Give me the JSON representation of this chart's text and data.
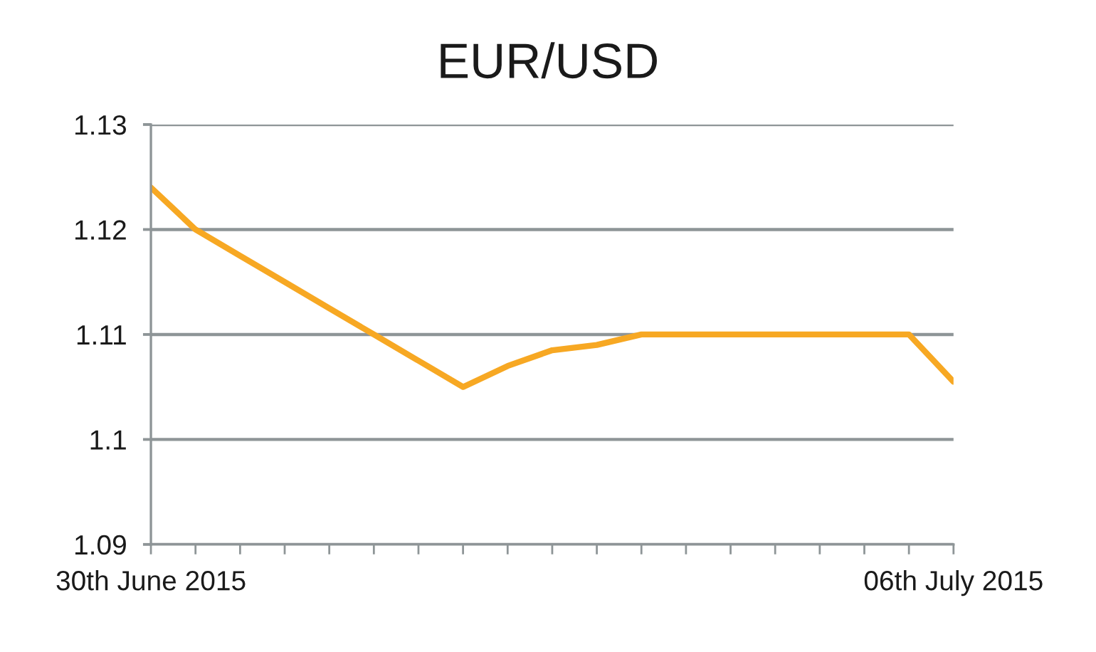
{
  "chart_data": {
    "type": "line",
    "title": "EUR/USD",
    "categories": [
      "30th June 2015",
      null,
      null,
      null,
      null,
      null,
      null,
      null,
      null,
      null,
      null,
      null,
      null,
      null,
      null,
      null,
      null,
      null,
      "06th July 2015"
    ],
    "series": [
      {
        "color": "#f7a823",
        "values": [
          1.124,
          1.12,
          1.1175,
          1.115,
          1.1125,
          1.11,
          1.1075,
          1.105,
          1.107,
          1.1085,
          1.109,
          1.11,
          1.11,
          1.11,
          1.11,
          1.11,
          1.11,
          1.11,
          1.1055
        ]
      }
    ],
    "ylim": [
      1.09,
      1.13
    ],
    "yticks": [
      1.09,
      1.1,
      1.11,
      1.12,
      1.13
    ],
    "grid": "y",
    "marker": "none",
    "line_style": "solid"
  }
}
